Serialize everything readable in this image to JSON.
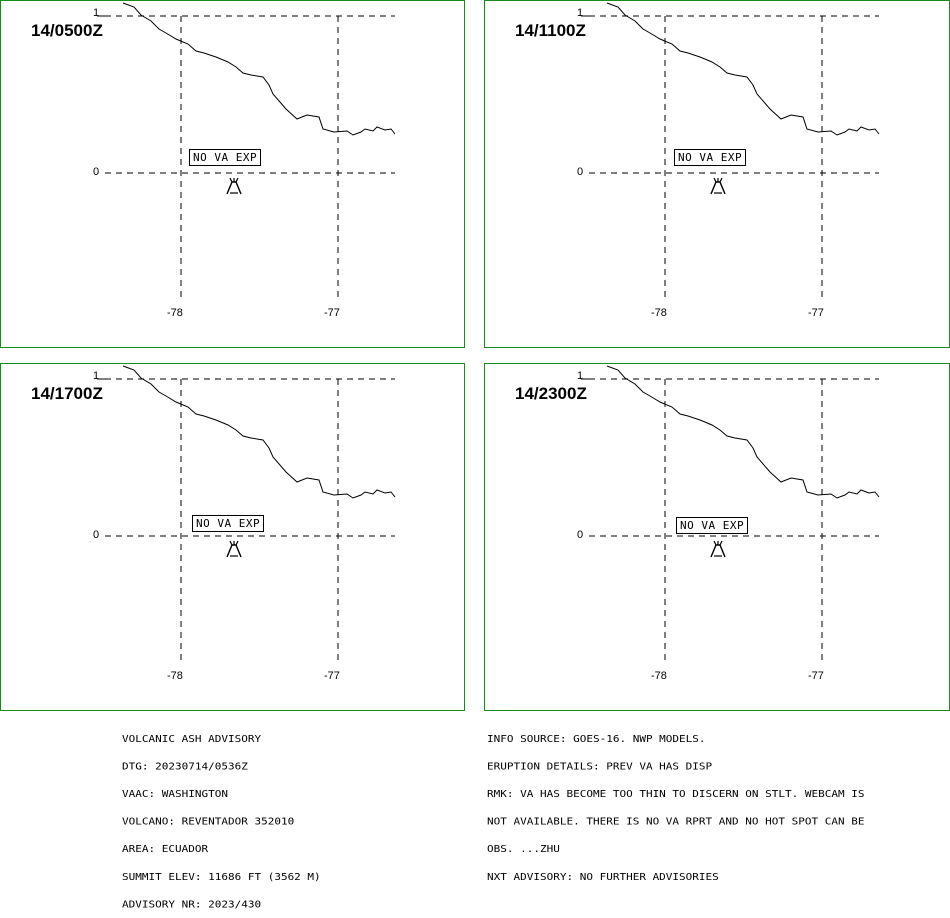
{
  "panels": [
    {
      "time": "14/0500Z",
      "label": "NO VA EXP"
    },
    {
      "time": "14/1100Z",
      "label": "NO VA EXP"
    },
    {
      "time": "14/1700Z",
      "label": "NO VA EXP"
    },
    {
      "time": "14/2300Z",
      "label": "NO VA EXP"
    }
  ],
  "axes": {
    "lat_labels": [
      "1",
      "0"
    ],
    "lon_labels": [
      "-78",
      "-77"
    ]
  },
  "volcano_icon": "volcano-icon",
  "advisory_left": [
    "VOLCANIC ASH ADVISORY",
    "DTG: 20230714/0536Z",
    "VAAC: WASHINGTON",
    "VOLCANO: REVENTADOR 352010",
    "AREA: ECUADOR",
    "SUMMIT ELEV: 11686 FT (3562 M)",
    "ADVISORY NR: 2023/430"
  ],
  "advisory_right": [
    "INFO SOURCE: GOES-16. NWP MODELS.",
    "ERUPTION DETAILS: PREV VA HAS DISP",
    "RMK: VA HAS BECOME TOO THIN TO DISCERN ON STLT. WEBCAM IS",
    "NOT AVAILABLE. THERE IS NO VA RPRT AND NO HOT SPOT CAN BE",
    "OBS. ...ZHU",
    "NXT ADVISORY: NO FURTHER ADVISORIES"
  ],
  "colors": {
    "frame": "#1a8a1a",
    "lines": "#000000"
  }
}
